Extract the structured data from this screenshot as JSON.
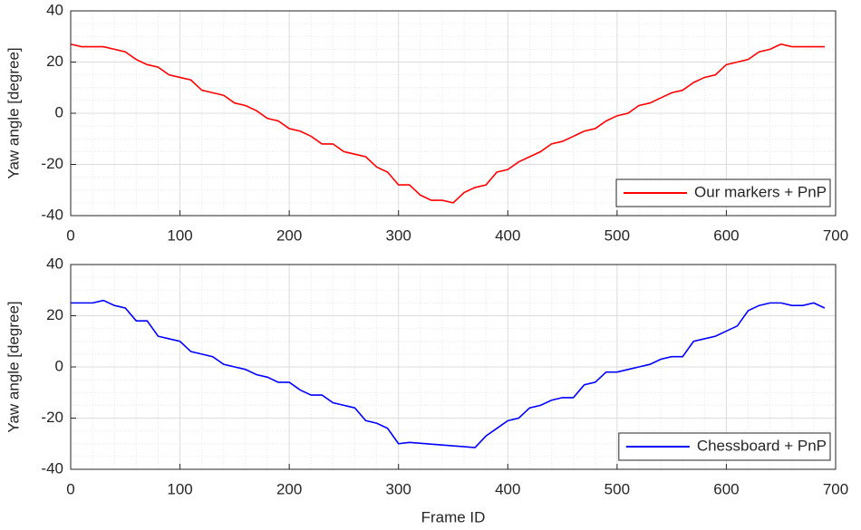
{
  "chart_data": [
    {
      "type": "line",
      "ylabel": "Yaw angle [degree]",
      "x": [
        0,
        10,
        20,
        30,
        40,
        50,
        60,
        70,
        80,
        90,
        100,
        110,
        120,
        130,
        140,
        150,
        160,
        170,
        180,
        190,
        200,
        210,
        220,
        230,
        240,
        250,
        260,
        270,
        280,
        290,
        300,
        310,
        320,
        330,
        340,
        350,
        360,
        370,
        380,
        390,
        400,
        410,
        420,
        430,
        440,
        450,
        460,
        470,
        480,
        490,
        500,
        510,
        520,
        530,
        540,
        550,
        560,
        570,
        580,
        590,
        600,
        610,
        620,
        630,
        640,
        650,
        660,
        670,
        680,
        690
      ],
      "series": [
        {
          "name": "Our markers + PnP",
          "color": "#ff0000",
          "values": [
            27,
            26,
            26,
            26,
            25,
            24,
            21,
            19,
            18,
            15,
            14,
            13,
            9,
            8,
            7,
            4,
            3,
            1,
            -2,
            -3,
            -6,
            -7,
            -9,
            -12,
            -12,
            -15,
            -16,
            -17,
            -21,
            -23,
            -28,
            -28,
            -32,
            -34,
            -34,
            -35,
            -31,
            -29,
            -28,
            -23,
            -22,
            -19,
            -17,
            -15,
            -12,
            -11,
            -9,
            -7,
            -6,
            -3,
            -1,
            0,
            3,
            4,
            6,
            8,
            9,
            12,
            14,
            15,
            19,
            20,
            21,
            24,
            25,
            27,
            26,
            26,
            26,
            26
          ]
        }
      ],
      "xlim": [
        0,
        700
      ],
      "xticks": [
        0,
        100,
        200,
        300,
        400,
        500,
        600,
        700
      ],
      "ylim": [
        -40,
        40
      ],
      "yticks": [
        -40,
        -20,
        0,
        20,
        40
      ],
      "grid": true,
      "minor_grid": true,
      "legend": "lower right"
    },
    {
      "type": "line",
      "ylabel": "Yaw angle [degree]",
      "xlabel": "Frame ID",
      "x": [
        0,
        10,
        20,
        30,
        40,
        50,
        60,
        70,
        80,
        90,
        100,
        110,
        120,
        130,
        140,
        150,
        160,
        170,
        180,
        190,
        200,
        210,
        220,
        230,
        240,
        250,
        260,
        270,
        280,
        290,
        300,
        310,
        340,
        370,
        380,
        390,
        400,
        410,
        420,
        430,
        440,
        450,
        460,
        470,
        480,
        490,
        500,
        510,
        520,
        530,
        540,
        550,
        560,
        570,
        580,
        590,
        600,
        610,
        620,
        630,
        640,
        650,
        660,
        670,
        680,
        690
      ],
      "series": [
        {
          "name": "Chessboard + PnP",
          "color": "#0000ff",
          "values": [
            25,
            25,
            25,
            26,
            24,
            23,
            18,
            18,
            12,
            11,
            10,
            6,
            5,
            4,
            1,
            0,
            -1,
            -3,
            -4,
            -6,
            -6,
            -9,
            -11,
            -11,
            -14,
            -15,
            -16,
            -21,
            -22,
            -24,
            -30,
            -29.5,
            -30.5,
            -31.5,
            -27,
            -24,
            -21,
            -20,
            -16,
            -15,
            -13,
            -12,
            -12,
            -7,
            -6,
            -2,
            -2,
            -1,
            0,
            1,
            3,
            4,
            4,
            10,
            11,
            12,
            14,
            16,
            22,
            24,
            25,
            25,
            24,
            24,
            25,
            23
          ]
        }
      ],
      "xlim": [
        0,
        700
      ],
      "xticks": [
        0,
        100,
        200,
        300,
        400,
        500,
        600,
        700
      ],
      "ylim": [
        -40,
        40
      ],
      "yticks": [
        -40,
        -20,
        0,
        20,
        40
      ],
      "grid": true,
      "minor_grid": true,
      "legend": "lower right"
    }
  ]
}
